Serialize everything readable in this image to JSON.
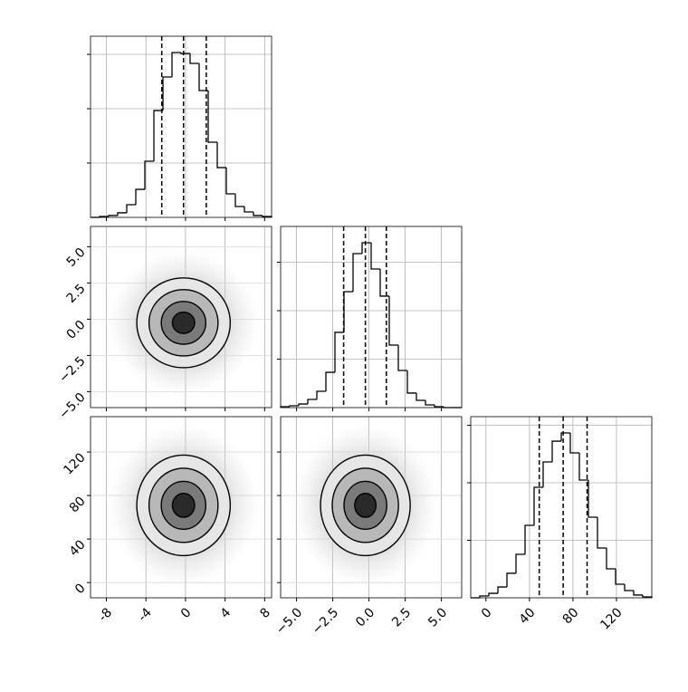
{
  "chart_data": {
    "type": "corner",
    "grid": true,
    "color": "#000000",
    "variables": [
      {
        "lim": [
          -9.6,
          8.7
        ],
        "ticks": [
          -8,
          -4,
          0,
          4,
          8
        ],
        "bins": [
          -9.6,
          -8.685,
          -7.77,
          -6.855,
          -5.94,
          -5.025,
          -4.11,
          -3.195,
          -2.28,
          -1.365,
          -0.45,
          0.465,
          1.38,
          2.295,
          3.21,
          4.125,
          5.04,
          5.955,
          6.87,
          7.785,
          8.7
        ],
        "counts": [
          0,
          8,
          17,
          42,
          117,
          258,
          517,
          983,
          1292,
          1517,
          1508,
          1417,
          1167,
          692,
          458,
          217,
          100,
          50,
          17,
          8
        ],
        "quantiles": [
          -2.4,
          -0.2,
          2.1
        ],
        "hist_ylim": [
          0,
          1667
        ],
        "hist_yticks": [
          500,
          1000,
          1500
        ]
      },
      {
        "lim": [
          -6.1,
          6.4
        ],
        "ticks": [
          {
            "value": -5,
            "label": "−5.0"
          },
          {
            "value": -2.5,
            "label": "−2.5"
          },
          {
            "value": 0,
            "label": "0.0"
          },
          {
            "value": 2.5,
            "label": "2.5"
          },
          {
            "value": 5,
            "label": "5.0"
          }
        ],
        "bins": [
          -6.1,
          -5.475,
          -4.85,
          -4.225,
          -3.6,
          -2.975,
          -2.35,
          -1.725,
          -1.1,
          -0.475,
          0.15,
          0.775,
          1.4,
          2.025,
          2.65,
          3.275,
          3.9,
          4.525,
          5.15,
          5.775,
          6.4
        ],
        "counts": [
          9,
          19,
          37,
          84,
          168,
          364,
          776,
          1196,
          1589,
          1701,
          1430,
          1150,
          645,
          383,
          150,
          75,
          28,
          9,
          0,
          0
        ],
        "quantiles": [
          -1.75,
          -0.25,
          1.2
        ],
        "hist_ylim": [
          0,
          1869
        ],
        "hist_yticks": [
          500,
          1000,
          1500
        ]
      },
      {
        "lim": [
          -14,
          152.5
        ],
        "ticks": [
          0,
          40,
          80,
          120
        ],
        "bins": [
          -14,
          -5.675,
          2.65,
          10.975,
          19.3,
          27.625,
          35.95,
          44.275,
          52.6,
          60.925,
          69.25,
          77.575,
          85.9,
          94.225,
          102.55,
          110.875,
          119.2,
          127.525,
          135.85,
          144.175,
          152.5
        ],
        "counts": [
          0,
          16,
          39,
          94,
          213,
          378,
          630,
          961,
          1181,
          1362,
          1433,
          1260,
          1024,
          701,
          433,
          252,
          118,
          63,
          24,
          8
        ],
        "quantiles": [
          49,
          71,
          93
        ],
        "hist_ylim": [
          0,
          1575
        ],
        "hist_yticks": [
          500,
          1000,
          1500
        ]
      }
    ]
  }
}
